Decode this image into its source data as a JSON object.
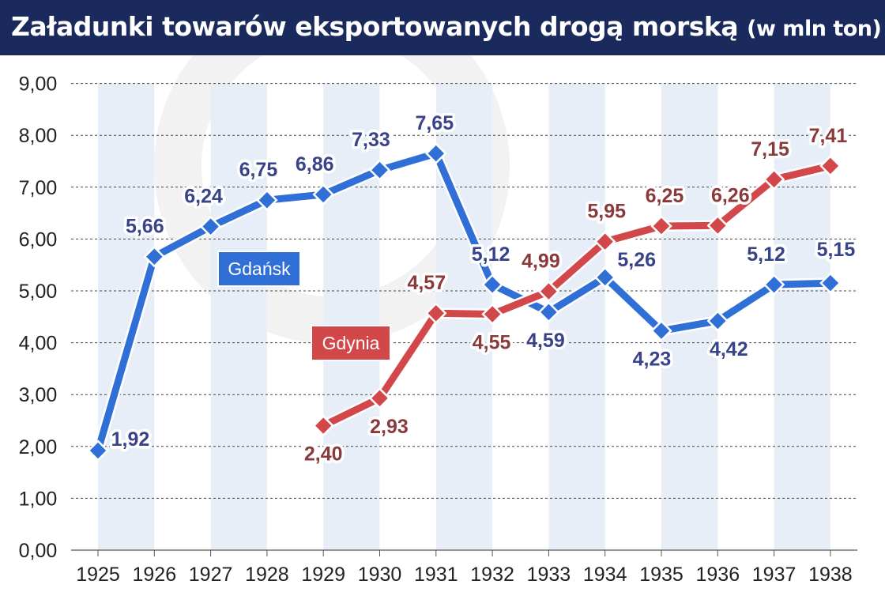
{
  "title": "Załadunki towarów eksportowanych drogą morską",
  "subtitle": "(w mln ton)",
  "chart_data": {
    "type": "line",
    "title": "Załadunki towarów eksportowanych drogą morską",
    "subtitle": "(w mln ton)",
    "xlabel": "",
    "ylabel": "",
    "ylim": [
      0,
      9
    ],
    "y_ticks": [
      "0,00",
      "1,00",
      "2,00",
      "3,00",
      "4,00",
      "5,00",
      "6,00",
      "7,00",
      "8,00",
      "9,00"
    ],
    "categories": [
      "1925",
      "1926",
      "1927",
      "1928",
      "1929",
      "1930",
      "1931",
      "1932",
      "1933",
      "1934",
      "1935",
      "1936",
      "1937",
      "1938"
    ],
    "grid": true,
    "series": [
      {
        "name": "Gdańsk",
        "color": "#2f6fd6",
        "values": [
          1.92,
          5.66,
          6.24,
          6.75,
          6.86,
          7.33,
          7.65,
          5.12,
          4.59,
          5.26,
          4.23,
          4.42,
          5.12,
          5.15
        ],
        "labels": [
          "1,92",
          "5,66",
          "6,24",
          "6,75",
          "6,86",
          "7,33",
          "7,65",
          "5,12",
          "4,59",
          "5,26",
          "4,23",
          "4,42",
          "5,12",
          "5,15"
        ]
      },
      {
        "name": "Gdynia",
        "color": "#d2474a",
        "values": [
          null,
          null,
          null,
          null,
          2.4,
          2.93,
          4.57,
          4.55,
          4.99,
          5.95,
          6.25,
          6.26,
          7.15,
          7.41
        ],
        "labels": [
          null,
          null,
          null,
          null,
          "2,40",
          "2,93",
          "4,57",
          "4,55",
          "4,99",
          "5,95",
          "6,25",
          "6,26",
          "7,15",
          "7,41"
        ]
      }
    ]
  }
}
